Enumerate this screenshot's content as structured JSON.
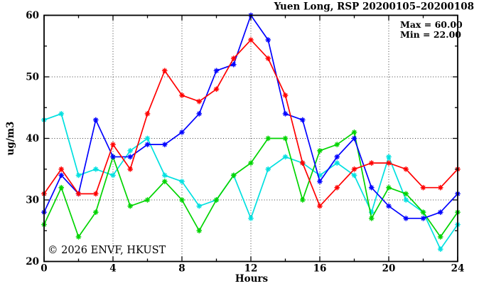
{
  "title": "Yuen Long, RSP 20200105–20200108",
  "annotations": {
    "max_label": "Max = 60.00",
    "min_label": "Min = 22.00"
  },
  "watermark": "© 2026 ENVF, HKUST",
  "colors": {
    "axis": "#000000",
    "grid": "#3c3c3c",
    "watermark": "#d8d8d8",
    "background": "#ffffff"
  },
  "chart_data": {
    "type": "line",
    "title": "Yuen Long, RSP 20200105–20200108",
    "xlabel": "Hours",
    "ylabel": "ug/m3",
    "xlim": [
      0,
      24
    ],
    "ylim": [
      20,
      60
    ],
    "x_major_ticks": [
      0,
      4,
      8,
      12,
      16,
      20,
      24
    ],
    "x_minor_ticks": [
      2,
      6,
      10,
      14,
      18,
      22
    ],
    "y_major_ticks": [
      20,
      30,
      40,
      50,
      60
    ],
    "y_minor_ticks": [
      25,
      35,
      45,
      55
    ],
    "x_gridlines": [
      4,
      8,
      12,
      16,
      20
    ],
    "y_gridlines": [
      30,
      40,
      50
    ],
    "grid": true,
    "legend": false,
    "marker": "asterisk",
    "stats": {
      "max": 60.0,
      "min": 22.0
    },
    "x": [
      0,
      1,
      2,
      3,
      4,
      5,
      6,
      7,
      8,
      9,
      10,
      11,
      12,
      13,
      14,
      15,
      16,
      17,
      18,
      19,
      20,
      21,
      22,
      23,
      24
    ],
    "series": [
      {
        "name": "cyan",
        "color": "#00e0e0",
        "values": [
          43,
          44,
          34,
          35,
          34,
          38,
          40,
          34,
          33,
          29,
          30,
          34,
          27,
          35,
          37,
          36,
          34,
          36,
          34,
          28,
          37,
          30,
          28,
          22,
          26
        ]
      },
      {
        "name": "green",
        "color": "#00d400",
        "values": [
          26,
          32,
          24,
          28,
          37,
          29,
          30,
          33,
          30,
          25,
          30,
          34,
          36,
          40,
          40,
          30,
          38,
          39,
          41,
          27,
          32,
          31,
          28,
          24,
          28
        ]
      },
      {
        "name": "blue",
        "color": "#0000ff",
        "values": [
          28,
          34,
          31,
          43,
          37,
          37,
          39,
          39,
          41,
          44,
          51,
          52,
          60,
          56,
          44,
          43,
          33,
          37,
          40,
          32,
          29,
          27,
          27,
          28,
          31
        ]
      },
      {
        "name": "red",
        "color": "#ff0000",
        "values": [
          31,
          35,
          31,
          31,
          39,
          35,
          44,
          51,
          47,
          46,
          48,
          53,
          56,
          53,
          47,
          36,
          29,
          32,
          35,
          36,
          36,
          35,
          32,
          32,
          35
        ]
      }
    ]
  }
}
